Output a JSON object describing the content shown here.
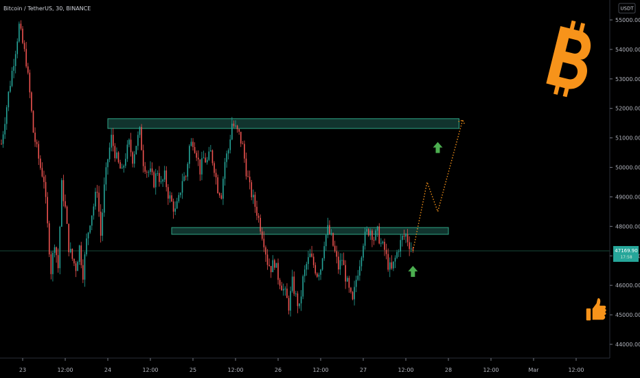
{
  "chart_data": {
    "type": "candlestick",
    "title": "Bitcoin / TetherUS, 30, BINANCE",
    "currency": "USDT",
    "current_price": "47169.90",
    "countdown": "17:58",
    "ylim": [
      43400,
      55600
    ],
    "y_ticks": [
      "44000.00",
      "45000.00",
      "46000.00",
      "47000.00",
      "48000.00",
      "49000.00",
      "50000.00",
      "51000.00",
      "52000.00",
      "53000.00",
      "54000.00",
      "55000.00"
    ],
    "y_tick_values": [
      44000,
      45000,
      46000,
      47000,
      48000,
      49000,
      50000,
      51000,
      52000,
      53000,
      54000,
      55000
    ],
    "x_ticks": [
      {
        "label": "23",
        "t": 0
      },
      {
        "label": "12:00",
        "t": 12
      },
      {
        "label": "24",
        "t": 24
      },
      {
        "label": "12:00",
        "t": 36
      },
      {
        "label": "25",
        "t": 48
      },
      {
        "label": "12:00",
        "t": 60
      },
      {
        "label": "26",
        "t": 72
      },
      {
        "label": "12:00",
        "t": 84
      },
      {
        "label": "27",
        "t": 96
      },
      {
        "label": "12:00",
        "t": 108
      },
      {
        "label": "28",
        "t": 120
      },
      {
        "label": "12:00",
        "t": 132
      },
      {
        "label": "Mar",
        "t": 144
      },
      {
        "label": "12:00",
        "t": 156
      }
    ],
    "xlim_hours": [
      -6,
      160
    ],
    "price_path": [
      [
        -6,
        50800
      ],
      [
        -4,
        52500
      ],
      [
        -2,
        54000
      ],
      [
        -1,
        54800
      ],
      [
        0,
        54200
      ],
      [
        1,
        53600
      ],
      [
        2,
        52500
      ],
      [
        3,
        51200
      ],
      [
        4,
        50600
      ],
      [
        5,
        50000
      ],
      [
        6,
        49600
      ],
      [
        7,
        48000
      ],
      [
        8,
        46500
      ],
      [
        9,
        47500
      ],
      [
        10,
        46600
      ],
      [
        11,
        49400
      ],
      [
        12,
        48600
      ],
      [
        13,
        47300
      ],
      [
        14,
        46900
      ],
      [
        15,
        46600
      ],
      [
        16,
        47300
      ],
      [
        17,
        46400
      ],
      [
        18,
        47500
      ],
      [
        19,
        48200
      ],
      [
        20,
        48700
      ],
      [
        21,
        49300
      ],
      [
        22,
        47700
      ],
      [
        23,
        49300
      ],
      [
        24,
        50300
      ],
      [
        25,
        51000
      ],
      [
        26,
        50500
      ],
      [
        27,
        50100
      ],
      [
        28,
        49800
      ],
      [
        29,
        50400
      ],
      [
        30,
        50800
      ],
      [
        31,
        50300
      ],
      [
        32,
        50800
      ],
      [
        33,
        51200
      ],
      [
        34,
        50200
      ],
      [
        35,
        49900
      ],
      [
        36,
        49800
      ],
      [
        37,
        49500
      ],
      [
        38,
        49900
      ],
      [
        39,
        49400
      ],
      [
        40,
        49700
      ],
      [
        41,
        49100
      ],
      [
        42,
        48800
      ],
      [
        43,
        48500
      ],
      [
        44,
        48900
      ],
      [
        45,
        49600
      ],
      [
        46,
        49700
      ],
      [
        47,
        50700
      ],
      [
        48,
        50900
      ],
      [
        49,
        50500
      ],
      [
        50,
        49900
      ],
      [
        51,
        50300
      ],
      [
        52,
        50200
      ],
      [
        53,
        50500
      ],
      [
        54,
        50000
      ],
      [
        55,
        49300
      ],
      [
        56,
        49100
      ],
      [
        57,
        50200
      ],
      [
        58,
        50600
      ],
      [
        59,
        51500
      ],
      [
        60,
        51300
      ],
      [
        61,
        51100
      ],
      [
        62,
        50700
      ],
      [
        63,
        49900
      ],
      [
        64,
        49300
      ],
      [
        65,
        48900
      ],
      [
        66,
        48500
      ],
      [
        67,
        48000
      ],
      [
        68,
        47500
      ],
      [
        69,
        46800
      ],
      [
        70,
        46600
      ],
      [
        71,
        46800
      ],
      [
        72,
        46300
      ],
      [
        73,
        46000
      ],
      [
        74,
        45700
      ],
      [
        75,
        45300
      ],
      [
        76,
        46100
      ],
      [
        77,
        45600
      ],
      [
        78,
        45200
      ],
      [
        79,
        46200
      ],
      [
        80,
        46700
      ],
      [
        81,
        47000
      ],
      [
        82,
        46700
      ],
      [
        83,
        46400
      ],
      [
        84,
        46600
      ],
      [
        85,
        47500
      ],
      [
        86,
        47900
      ],
      [
        87,
        47600
      ],
      [
        88,
        47100
      ],
      [
        89,
        46600
      ],
      [
        90,
        46900
      ],
      [
        91,
        46300
      ],
      [
        92,
        45800
      ],
      [
        93,
        45400
      ],
      [
        94,
        46200
      ],
      [
        95,
        46800
      ],
      [
        96,
        47500
      ],
      [
        97,
        47800
      ],
      [
        98,
        47900
      ],
      [
        99,
        47600
      ],
      [
        100,
        47800
      ],
      [
        101,
        47400
      ],
      [
        102,
        47200
      ],
      [
        103,
        46700
      ],
      [
        104,
        46500
      ],
      [
        105,
        46900
      ],
      [
        106,
        47300
      ],
      [
        107,
        47600
      ],
      [
        108,
        47700
      ],
      [
        109,
        47400
      ],
      [
        110,
        47170
      ]
    ],
    "resistance_zone": {
      "t_start": 24,
      "t_end": 123,
      "low": 51320,
      "high": 51650
    },
    "support_zone": {
      "t_start": 42,
      "t_end": 120,
      "low": 47730,
      "high": 47960
    },
    "projection_path": [
      [
        110,
        47170
      ],
      [
        114,
        49500
      ],
      [
        117,
        48500
      ],
      [
        124,
        51600
      ]
    ],
    "up_arrows": [
      {
        "t": 110,
        "price": 46450
      },
      {
        "t": 117,
        "price": 50650
      }
    ],
    "colors": {
      "up": "#26a69a",
      "down": "#ef5350",
      "zone_fill": "#1f5f53",
      "zone_stroke": "#2fa586",
      "projection": "#f7931a",
      "arrow": "#4caf50",
      "price_label": "#26a69a",
      "bitcoin_logo": "#f7931a",
      "thumb": "#f7931a"
    },
    "icons": [
      "bitcoin-logo-icon",
      "thumbs-up-icon"
    ]
  }
}
